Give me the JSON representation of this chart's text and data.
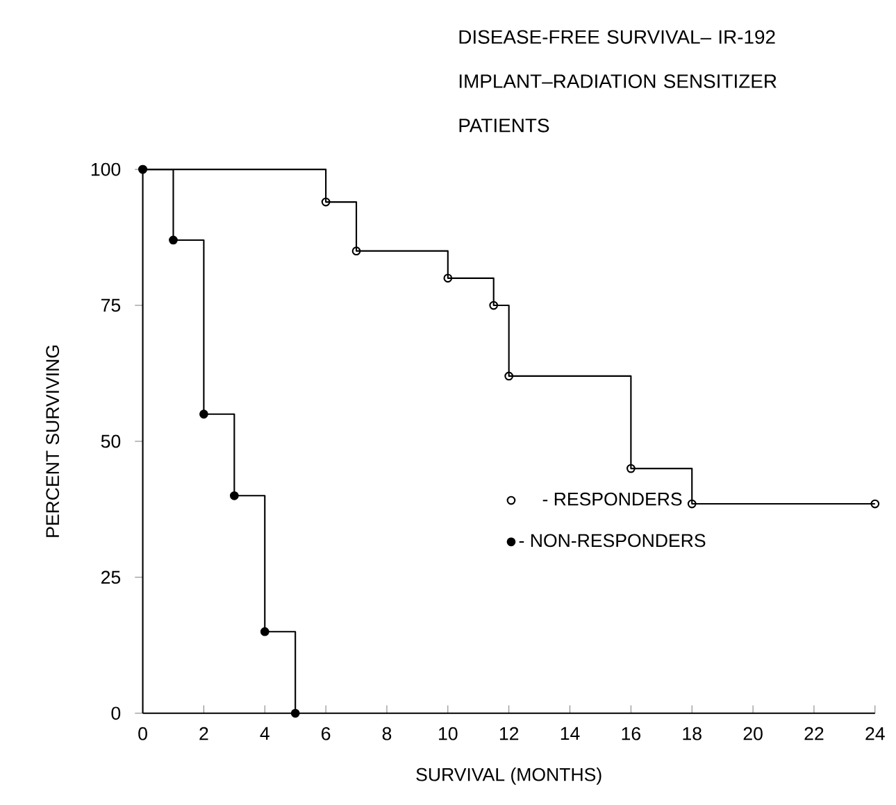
{
  "chart_data": {
    "type": "step",
    "title": "DISEASE-FREE SURVIVAL– IR-192 IMPLANT–RADIATION SENSITIZER PATIENTS",
    "xlabel": "SURVIVAL  (MONTHS)",
    "ylabel": "PERCENT SURVIVING",
    "series": [
      {
        "name": "- RESPONDERS",
        "color": "#000000",
        "marker": "circle",
        "x": [
          0,
          6,
          7,
          10,
          11.5,
          12,
          16,
          18,
          24
        ],
        "values": [
          100,
          94,
          85,
          80,
          75,
          62,
          45,
          38.5,
          38.5
        ]
      },
      {
        "name": "- NON-RESPONDERS",
        "color": "#000000",
        "marker": "filled circle",
        "x": [
          0,
          1,
          2,
          3,
          4,
          5
        ],
        "values": [
          100,
          87,
          55,
          40,
          15,
          0
        ]
      }
    ],
    "xlim": [
      0,
      24
    ],
    "ylim": [
      0,
      100
    ],
    "xticks": [
      0,
      2,
      4,
      6,
      8,
      10,
      12,
      14,
      16,
      18,
      20,
      22,
      24
    ],
    "yticks": [
      0,
      25,
      50,
      75,
      100
    ],
    "legend": "center",
    "grid": false
  }
}
